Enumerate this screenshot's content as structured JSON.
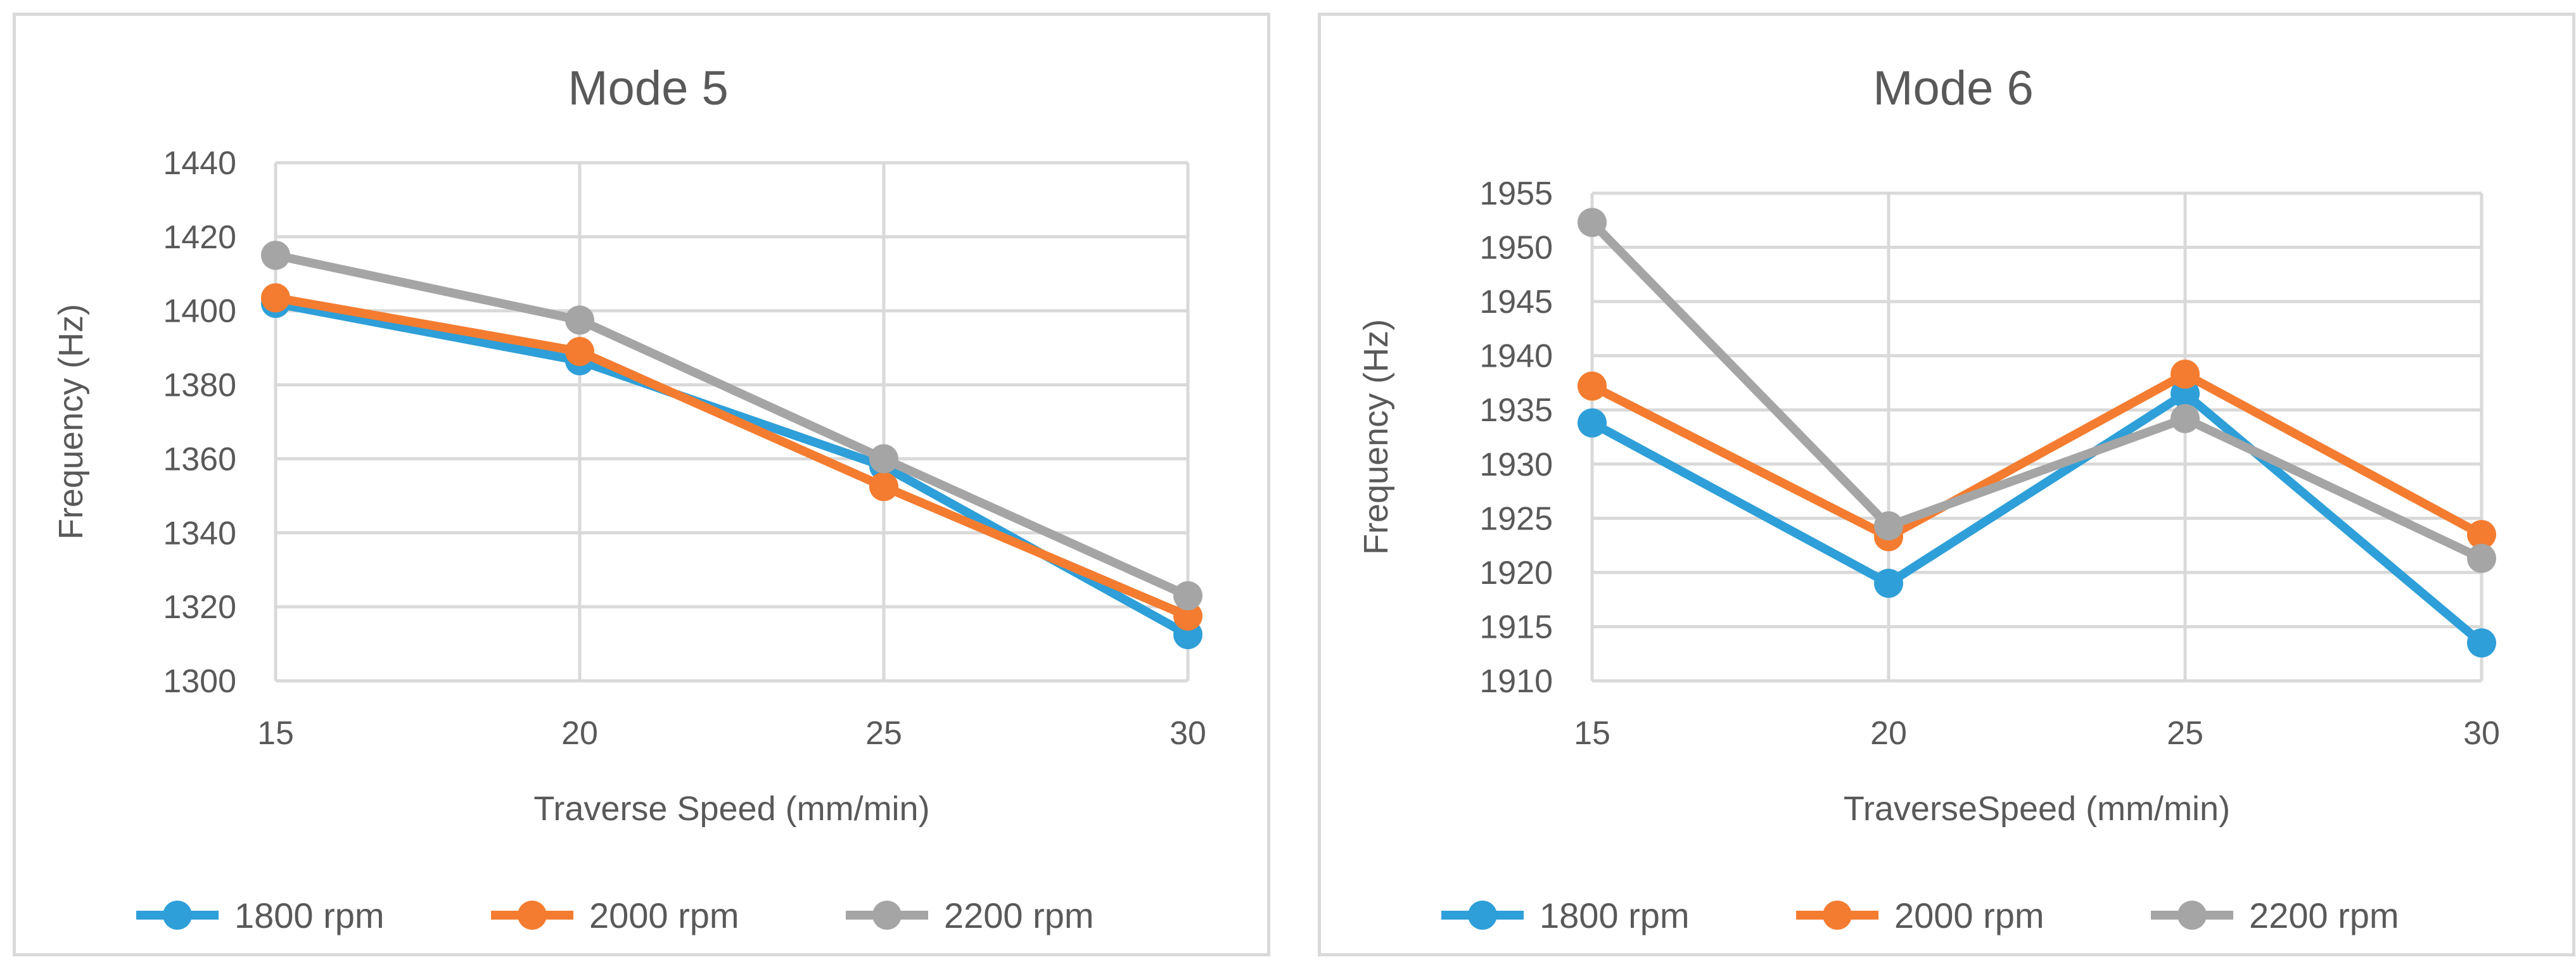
{
  "chart_data": [
    {
      "type": "line",
      "title": "Mode 5",
      "xlabel": "Traverse Speed (mm/min)",
      "ylabel": "Frequency (Hz)",
      "categories": [
        "15",
        "20",
        "25",
        "30"
      ],
      "ylim": [
        1300,
        1440
      ],
      "yticks": [
        1300,
        1320,
        1340,
        1360,
        1380,
        1400,
        1420,
        1440
      ],
      "grid": true,
      "legend_position": "bottom",
      "series": [
        {
          "name": "1800 rpm",
          "color": "#2e9fd8",
          "values": [
            1402,
            1386.5,
            1358,
            1312.5
          ]
        },
        {
          "name": "2000 rpm",
          "color": "#f47c30",
          "values": [
            1403.5,
            1389,
            1352.5,
            1317.5
          ]
        },
        {
          "name": "2200 rpm",
          "color": "#a5a5a5",
          "values": [
            1415,
            1397.5,
            1360,
            1323
          ]
        }
      ]
    },
    {
      "type": "line",
      "title": "Mode 6",
      "xlabel": "TraverseSpeed (mm/min)",
      "ylabel": "Frequency (Hz)",
      "categories": [
        "15",
        "20",
        "25",
        "30"
      ],
      "ylim": [
        1910,
        1955
      ],
      "yticks": [
        1910,
        1915,
        1920,
        1925,
        1930,
        1935,
        1940,
        1945,
        1950,
        1955
      ],
      "grid": true,
      "legend_position": "bottom",
      "series": [
        {
          "name": "1800 rpm",
          "color": "#2e9fd8",
          "values": [
            1933.8,
            1919,
            1936.5,
            1913.5
          ]
        },
        {
          "name": "2000 rpm",
          "color": "#f47c30",
          "values": [
            1937.2,
            1923.3,
            1938.3,
            1923.5
          ]
        },
        {
          "name": "2200 rpm",
          "color": "#a5a5a5",
          "values": [
            1952.3,
            1924.3,
            1934.2,
            1921.3
          ]
        }
      ]
    }
  ]
}
